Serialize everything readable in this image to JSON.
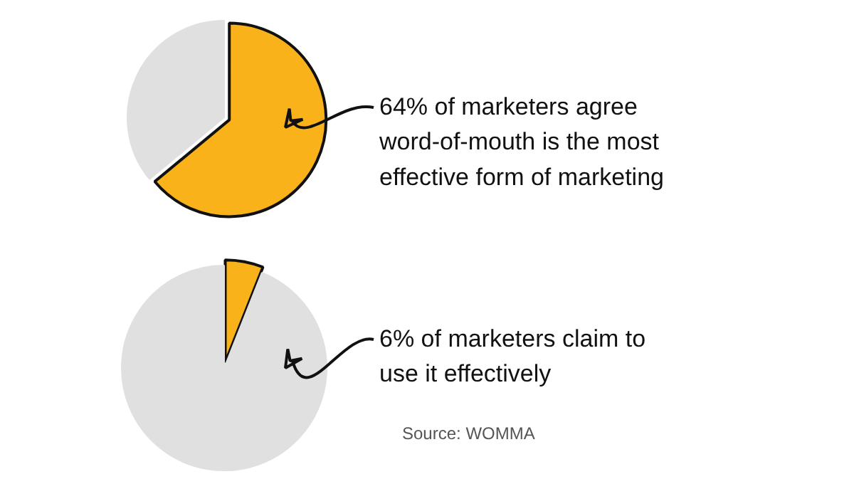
{
  "chart_data": [
    {
      "type": "pie",
      "categories": [
        null,
        null
      ],
      "values": [
        64,
        36
      ],
      "colors": [
        "#f9b21a",
        "#e0e0e0"
      ],
      "annotations": [
        "64% of marketers agree\nword-of-mouth is the most\neffective form of marketing"
      ]
    },
    {
      "type": "pie",
      "categories": [
        null,
        null
      ],
      "values": [
        6,
        94
      ],
      "colors": [
        "#f9b21a",
        "#e0e0e0"
      ],
      "annotations": [
        "6% of marketers claim to\nuse it effectively",
        "Source: WOMMA"
      ]
    }
  ]
}
